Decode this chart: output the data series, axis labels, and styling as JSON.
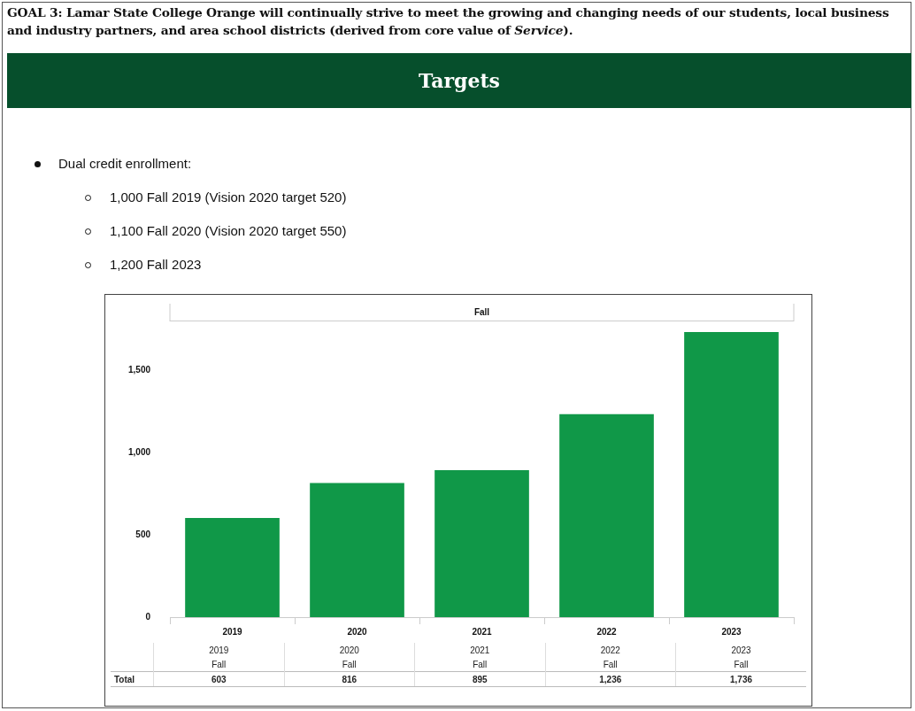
{
  "chart_data": {
    "type": "bar",
    "title": "GOAL 3: Lamar State College Orange will continually strive to meet the growing and changing needs of our students, local business and industry partners, and area school districts (derived from core value of Service).",
    "subtitle": "Targets",
    "annotations": [
      "Dual credit enrollment:",
      "1,000 Fall 2019 (Vision 2020 target 520)",
      "1,100 Fall 2020 (Vision 2020 target 550)",
      "1,200 Fall 2023",
      "Fall",
      "Total"
    ],
    "categories": [
      "2019",
      "2020",
      "2021",
      "2022",
      "2023"
    ],
    "values": [
      603,
      816,
      895,
      1236,
      1736
    ],
    "value_labels": [
      "603",
      "816",
      "895",
      "1,236",
      "1,736"
    ],
    "color": "#109848",
    "ylim": [
      0,
      1800
    ],
    "yticks": [
      0,
      500,
      {
        "value": 1000,
        "label": "1,000"
      },
      {
        "value": 1500,
        "label": "1,500"
      }
    ],
    "grid": false,
    "legend": false
  }
}
